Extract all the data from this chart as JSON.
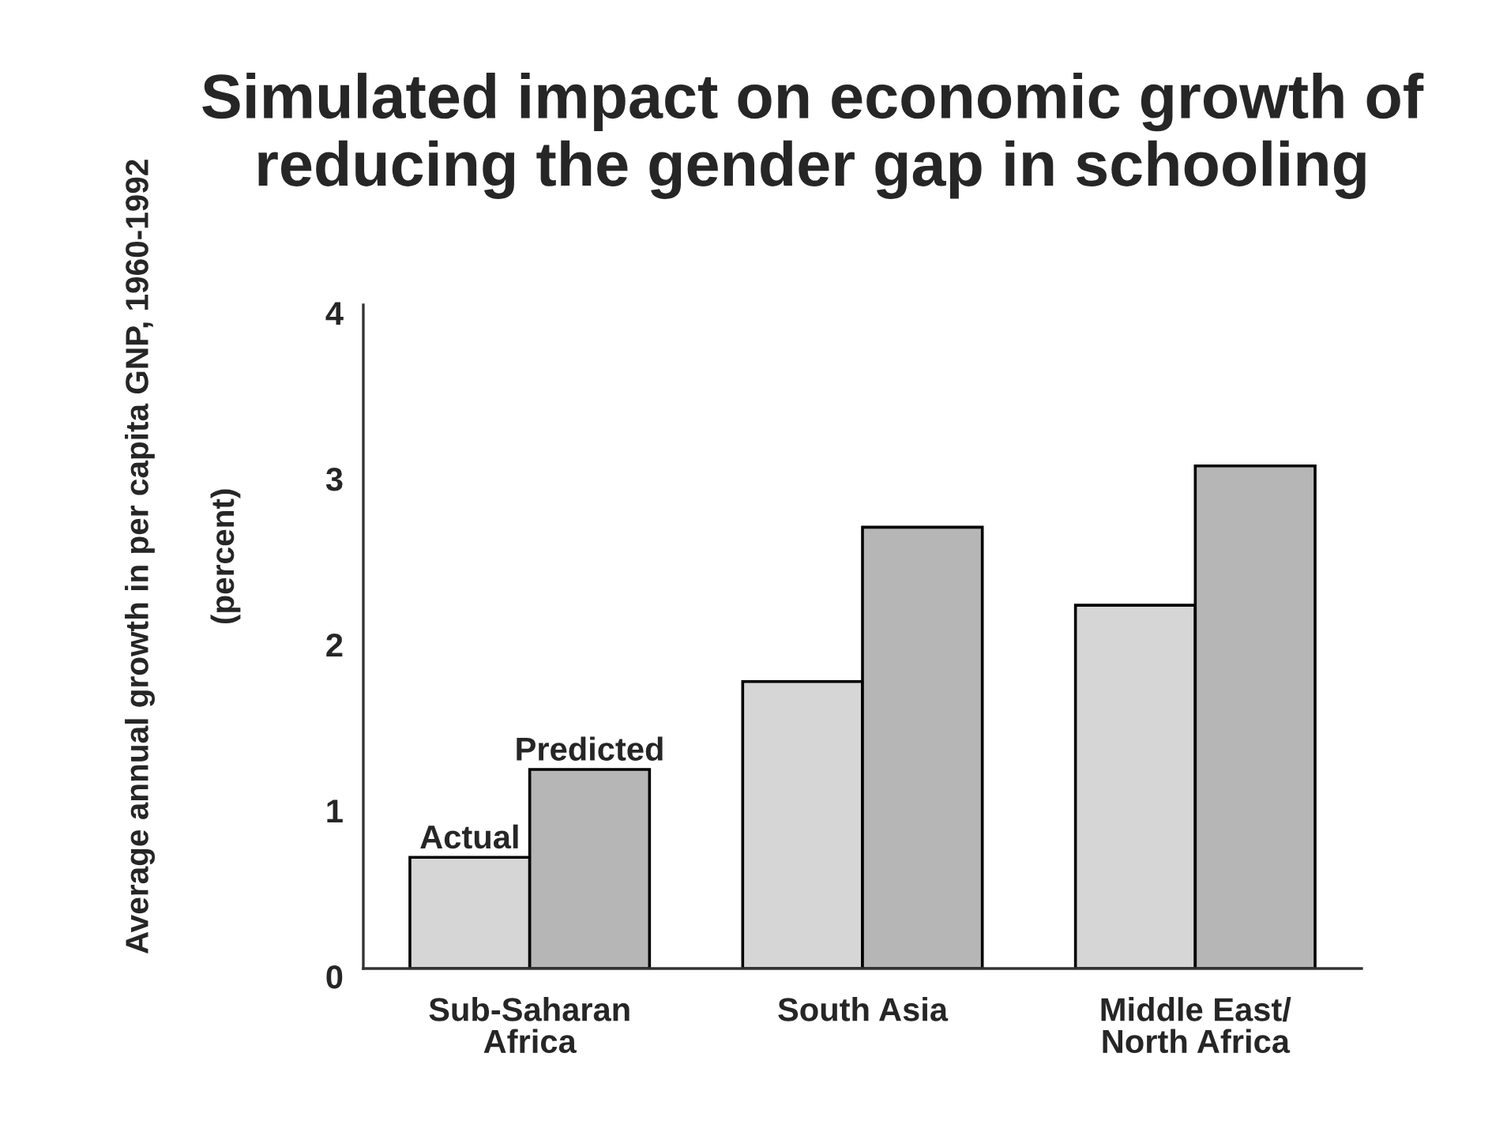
{
  "chart_data": {
    "type": "bar",
    "title": "Simulated impact on economic growth of\nreducing the gender gap in schooling",
    "ylabel": "Average annual growth in per capita GNP, 1960-1992\n(percent)",
    "categories": [
      "Sub-Saharan\nAfrica",
      "South Asia",
      "Middle East/\nNorth Africa"
    ],
    "series": [
      {
        "name": "Actual",
        "color": "#d6d6d6",
        "values": [
          0.67,
          1.73,
          2.19
        ]
      },
      {
        "name": "Predicted",
        "color": "#b6b6b6",
        "values": [
          1.2,
          2.66,
          3.03
        ]
      }
    ],
    "ylim": [
      0,
      4
    ],
    "yticks": [
      0,
      1,
      2,
      3,
      4
    ]
  }
}
